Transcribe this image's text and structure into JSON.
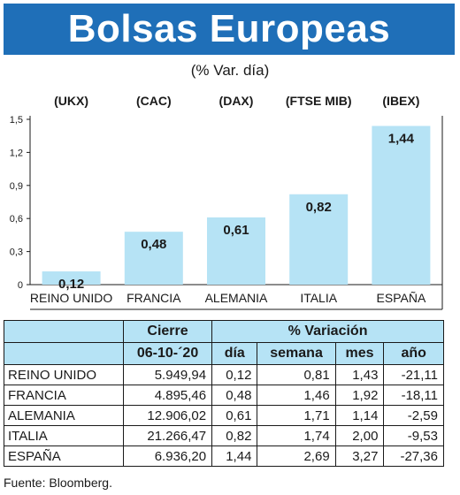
{
  "header": {
    "title": "Bolsas Europeas",
    "subtitle": "(% Var. día)",
    "source": "Fuente: Bloomberg."
  },
  "chart_data": {
    "type": "bar",
    "index_labels": [
      "(UKX)",
      "(CAC)",
      "(DAX)",
      "(FTSE MIB)",
      "(IBEX)"
    ],
    "categories": [
      "REINO UNIDO",
      "FRANCIA",
      "ALEMANIA",
      "ITALIA",
      "ESPAÑA"
    ],
    "values": [
      0.12,
      0.48,
      0.61,
      0.82,
      1.44
    ],
    "value_labels": [
      "0,12",
      "0,48",
      "0,61",
      "0,82",
      "1,44"
    ],
    "ylim": [
      0,
      1.5
    ],
    "y_ticks": [
      0,
      0.3,
      0.6,
      0.9,
      1.2,
      1.5
    ],
    "y_tick_labels": [
      "0",
      "0,3",
      "0,6",
      "0,9",
      "1,2",
      "1,5"
    ],
    "bar_color": "#b6e3f5",
    "grid": false
  },
  "table": {
    "header_cierre": "Cierre",
    "header_variacion": "% Variación",
    "header_date": "06-10-´20",
    "columns": [
      "día",
      "semana",
      "mes",
      "año"
    ],
    "rows": [
      {
        "country": "REINO UNIDO",
        "close": "5.949,94",
        "day": "0,12",
        "week": "0,81",
        "month": "1,43",
        "year": "-21,11"
      },
      {
        "country": "FRANCIA",
        "close": "4.895,46",
        "day": "0,48",
        "week": "1,46",
        "month": "1,92",
        "year": "-18,11"
      },
      {
        "country": "ALEMANIA",
        "close": "12.906,02",
        "day": "0,61",
        "week": "1,71",
        "month": "1,14",
        "year": "-2,59"
      },
      {
        "country": "ITALIA",
        "close": "21.266,47",
        "day": "0,82",
        "week": "1,74",
        "month": "2,00",
        "year": "-9,53"
      },
      {
        "country": "ESPAÑA",
        "close": "6.936,20",
        "day": "1,44",
        "week": "2,69",
        "month": "3,27",
        "year": "-27,36"
      }
    ]
  },
  "colors": {
    "title_bg": "#1f6fb8",
    "bar": "#b6e3f5",
    "table_header_bg": "#b6e3f5"
  }
}
